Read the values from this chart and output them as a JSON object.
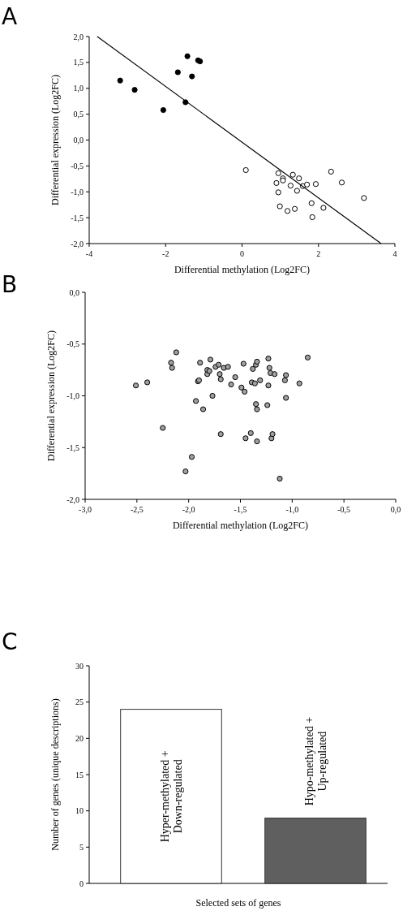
{
  "chart_data": [
    {
      "type": "scatter",
      "title": "A",
      "xlabel": "Differential methylation (Log2FC)",
      "ylabel": "Differential expression (Log2FC)",
      "xlim": [
        -4,
        4
      ],
      "xticks": [
        -4,
        -2,
        0,
        2,
        4
      ],
      "ylim": [
        -2,
        2
      ],
      "yticks": [
        {
          "value": -2,
          "label": "-2,0"
        },
        {
          "value": -1.5,
          "label": "-1,5"
        },
        {
          "value": -1,
          "label": "-1,0"
        },
        {
          "value": -0.5,
          "label": "-0,5"
        },
        {
          "value": 0,
          "label": "0,0"
        },
        {
          "value": 0.5,
          "label": "0,5"
        },
        {
          "value": 1,
          "label": "1,0"
        },
        {
          "value": 1.5,
          "label": "1,5"
        },
        {
          "value": 2,
          "label": "2,0"
        }
      ],
      "series": [
        {
          "type": "scatter",
          "marker": "circle",
          "color": "#000000",
          "x": [
            -3.19,
            -2.81,
            -2.06,
            -1.68,
            -1.48,
            -1.43,
            -1.31,
            -1.15,
            -1.1
          ],
          "values": [
            1.15,
            0.97,
            0.58,
            1.31,
            0.73,
            1.62,
            1.23,
            1.54,
            1.52
          ]
        },
        {
          "type": "scatter",
          "marker": "circle",
          "color": "#ffffff",
          "x": [
            0.1,
            0.95,
            0.9,
            1.07,
            1.07,
            0.95,
            0.99,
            1.19,
            1.27,
            1.33,
            1.38,
            1.44,
            1.49,
            1.59,
            1.7,
            1.82,
            1.84,
            1.93,
            2.13,
            2.33,
            2.61,
            3.19
          ],
          "values": [
            -0.58,
            -0.64,
            -0.83,
            -0.74,
            -0.78,
            -1.01,
            -1.28,
            -1.37,
            -0.88,
            -0.67,
            -1.33,
            -0.98,
            -0.74,
            -0.89,
            -0.86,
            -1.22,
            -1.49,
            -0.85,
            -1.31,
            -0.61,
            -0.82,
            -1.12
          ]
        },
        {
          "type": "line",
          "color": "#000000",
          "line_style": "solid",
          "x": [
            -3.79,
            3.64
          ],
          "values": [
            2.0,
            -2.0
          ]
        }
      ]
    },
    {
      "type": "scatter",
      "title": "B",
      "xlabel": "Differential methylation (Log2FC)",
      "ylabel": "Differential expression (Log2FC)",
      "xlim": [
        -3,
        0
      ],
      "xticks": [
        {
          "value": -3,
          "label": "-3,0"
        },
        {
          "value": -2.5,
          "label": "-2,5"
        },
        {
          "value": -2,
          "label": "-2,0"
        },
        {
          "value": -1.5,
          "label": "-1,5"
        },
        {
          "value": -1,
          "label": "-1,0"
        },
        {
          "value": -0.5,
          "label": "-0,5"
        },
        {
          "value": 0,
          "label": "0,0"
        }
      ],
      "ylim": [
        -2,
        0
      ],
      "yticks": [
        {
          "value": -2,
          "label": "-2,0"
        },
        {
          "value": -1.5,
          "label": "-1,5"
        },
        {
          "value": -1,
          "label": "-1,0"
        },
        {
          "value": -0.5,
          "label": "-0,5"
        },
        {
          "value": 0,
          "label": "0,0"
        }
      ],
      "marker": "circle",
      "series": [
        {
          "type": "scatter",
          "color": "#a0a0a0",
          "x": [
            -2.51,
            -2.4,
            -2.25,
            -2.17,
            -2.16,
            -2.12,
            -1.97,
            -1.93,
            -1.91,
            -1.9,
            -1.89,
            -1.86,
            -1.82,
            -1.82,
            -1.8,
            -1.79,
            -1.77,
            -1.74,
            -1.71,
            -1.7,
            -1.69,
            -1.69,
            -1.66,
            -1.62,
            -1.59,
            -1.55,
            -1.49,
            -1.47,
            -1.46,
            -1.45,
            -1.4,
            -1.39,
            -1.38,
            -1.36,
            -1.35,
            -1.35,
            -1.34,
            -1.34,
            -1.34,
            -1.31,
            -1.24,
            -1.23,
            -1.23,
            -1.22,
            -1.21,
            -1.2,
            -1.19,
            -1.17,
            -1.07,
            -1.06,
            -1.06,
            -0.93,
            -0.85,
            -2.03,
            -1.12
          ],
          "values": [
            -0.9,
            -0.87,
            -1.31,
            -0.68,
            -0.73,
            -0.58,
            -1.59,
            -1.05,
            -0.86,
            -0.85,
            -0.68,
            -1.13,
            -0.79,
            -0.75,
            -0.76,
            -0.65,
            -1.0,
            -0.72,
            -0.7,
            -0.79,
            -1.37,
            -0.84,
            -0.73,
            -0.72,
            -0.89,
            -0.82,
            -0.92,
            -0.69,
            -0.96,
            -1.41,
            -1.36,
            -0.87,
            -0.74,
            -0.88,
            -1.08,
            -0.7,
            -1.44,
            -1.13,
            -0.67,
            -0.85,
            -1.09,
            -0.9,
            -0.64,
            -0.73,
            -0.78,
            -1.41,
            -1.37,
            -0.79,
            -0.85,
            -0.8,
            -1.02,
            -0.88,
            -0.63,
            -1.73,
            -1.8
          ]
        }
      ]
    },
    {
      "type": "bar",
      "title": "C",
      "xlabel": "Selected sets of genes",
      "ylabel": "Number of genes (unique descriptions)",
      "categories": [
        "Hyper-methylated +\nDown-regulated",
        "Hypo-methylated +\nUp-regulated"
      ],
      "values": [
        24,
        9
      ],
      "colors": [
        "#ffffff",
        "#5f5f5f"
      ],
      "ylim": [
        0,
        30
      ],
      "yticks": [
        0,
        5,
        10,
        15,
        20,
        25,
        30
      ]
    }
  ]
}
